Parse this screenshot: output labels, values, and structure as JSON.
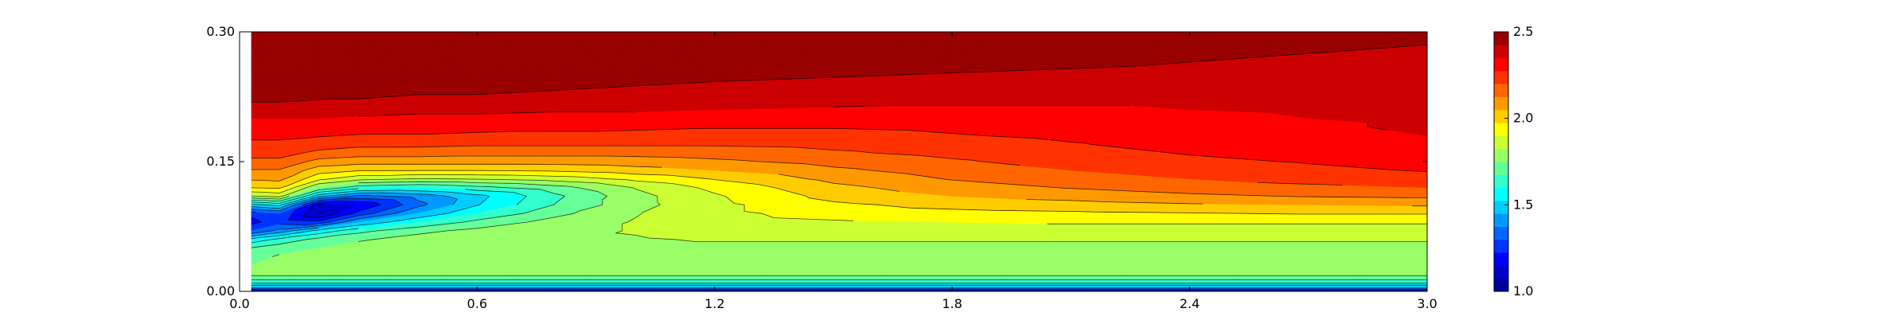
{
  "chart_data": {
    "type": "contourf",
    "title": "",
    "xlabel": "",
    "ylabel": "",
    "xlim": [
      0.0,
      3.0
    ],
    "ylim": [
      0.0,
      0.3
    ],
    "x_ticks": [
      0.0,
      0.6,
      1.2,
      1.8,
      2.4,
      3.0
    ],
    "x_tick_labels": [
      "0.0",
      "0.6",
      "1.2",
      "1.8",
      "2.4",
      "3.0"
    ],
    "y_ticks": [
      0.0,
      0.15,
      0.3
    ],
    "y_tick_labels": [
      "0.00",
      "0.15",
      "0.30"
    ],
    "grid": false,
    "colormap": "jet",
    "colorbar": {
      "min": 1.0,
      "max": 2.5,
      "ticks": [
        1.0,
        1.5,
        2.0,
        2.5
      ],
      "tick_labels": [
        "1.0",
        "1.5",
        "2.0",
        "2.5"
      ],
      "levels": [
        1.0,
        1.075,
        1.15,
        1.225,
        1.3,
        1.375,
        1.45,
        1.525,
        1.6,
        1.675,
        1.75,
        1.825,
        1.9,
        1.975,
        2.05,
        2.125,
        2.2,
        2.275,
        2.35,
        2.425,
        2.5
      ]
    },
    "field": {
      "x": [
        0.03,
        0.1,
        0.2,
        0.3,
        0.45,
        0.6,
        0.8,
        1.0,
        1.2,
        1.5,
        1.8,
        2.1,
        2.4,
        2.7,
        3.0
      ],
      "y": [
        0.0,
        0.005,
        0.01,
        0.02,
        0.03,
        0.04,
        0.05,
        0.06,
        0.07,
        0.08,
        0.09,
        0.1,
        0.11,
        0.12,
        0.13,
        0.14,
        0.15,
        0.16,
        0.17,
        0.18,
        0.19,
        0.2,
        0.21,
        0.22,
        0.23,
        0.24,
        0.25,
        0.26,
        0.27,
        0.28,
        0.29,
        0.3
      ],
      "values": [
        [
          1.15,
          1.45,
          1.62,
          1.78,
          1.75,
          1.72,
          1.68,
          1.55,
          1.3,
          1.2,
          1.25,
          1.5,
          1.82,
          1.98,
          2.06,
          2.12,
          2.18,
          2.23,
          2.26,
          2.29,
          2.32,
          2.35,
          2.39,
          2.43,
          2.45,
          2.47,
          2.48,
          2.49,
          2.5,
          2.5,
          2.5,
          2.5
        ],
        [
          1.15,
          1.45,
          1.62,
          1.78,
          1.78,
          1.76,
          1.72,
          1.62,
          1.4,
          1.27,
          1.3,
          1.55,
          1.85,
          1.99,
          2.07,
          2.12,
          2.18,
          2.23,
          2.26,
          2.29,
          2.32,
          2.35,
          2.39,
          2.43,
          2.45,
          2.47,
          2.48,
          2.49,
          2.5,
          2.5,
          2.5,
          2.5
        ],
        [
          1.15,
          1.45,
          1.62,
          1.78,
          1.78,
          1.77,
          1.75,
          1.7,
          1.55,
          1.25,
          1.07,
          1.12,
          1.47,
          1.75,
          1.92,
          2.01,
          2.1,
          2.18,
          2.24,
          2.28,
          2.32,
          2.35,
          2.39,
          2.42,
          2.45,
          2.47,
          2.48,
          2.49,
          2.5,
          2.5,
          2.5,
          2.5
        ],
        [
          1.15,
          1.45,
          1.62,
          1.78,
          1.79,
          1.79,
          1.78,
          1.74,
          1.65,
          1.45,
          1.25,
          1.15,
          1.35,
          1.63,
          1.85,
          1.98,
          2.08,
          2.16,
          2.22,
          2.27,
          2.31,
          2.34,
          2.38,
          2.42,
          2.44,
          2.46,
          2.48,
          2.49,
          2.5,
          2.5,
          2.5,
          2.5
        ],
        [
          1.15,
          1.45,
          1.62,
          1.78,
          1.79,
          1.8,
          1.79,
          1.78,
          1.73,
          1.6,
          1.45,
          1.35,
          1.4,
          1.6,
          1.82,
          1.98,
          2.08,
          2.16,
          2.22,
          2.27,
          2.3,
          2.33,
          2.37,
          2.41,
          2.43,
          2.45,
          2.47,
          2.48,
          2.5,
          2.5,
          2.5,
          2.5
        ],
        [
          1.15,
          1.45,
          1.62,
          1.78,
          1.79,
          1.8,
          1.8,
          1.79,
          1.77,
          1.7,
          1.6,
          1.52,
          1.5,
          1.65,
          1.83,
          1.98,
          2.08,
          2.15,
          2.21,
          2.26,
          2.3,
          2.33,
          2.37,
          2.41,
          2.43,
          2.45,
          2.47,
          2.48,
          2.49,
          2.5,
          2.5,
          2.5
        ],
        [
          1.15,
          1.45,
          1.62,
          1.78,
          1.79,
          1.8,
          1.81,
          1.81,
          1.8,
          1.78,
          1.73,
          1.68,
          1.66,
          1.72,
          1.86,
          1.99,
          2.08,
          2.15,
          2.21,
          2.26,
          2.29,
          2.32,
          2.36,
          2.4,
          2.42,
          2.44,
          2.46,
          2.48,
          2.49,
          2.49,
          2.5,
          2.5
        ],
        [
          1.15,
          1.45,
          1.62,
          1.78,
          1.79,
          1.8,
          1.81,
          1.82,
          1.83,
          1.83,
          1.82,
          1.8,
          1.8,
          1.83,
          1.92,
          2.02,
          2.09,
          2.15,
          2.21,
          2.25,
          2.29,
          2.32,
          2.36,
          2.39,
          2.41,
          2.43,
          2.45,
          2.47,
          2.48,
          2.49,
          2.49,
          2.49
        ],
        [
          1.15,
          1.45,
          1.62,
          1.78,
          1.79,
          1.8,
          1.81,
          1.83,
          1.85,
          1.87,
          1.88,
          1.88,
          1.89,
          1.92,
          1.98,
          2.05,
          2.11,
          2.16,
          2.21,
          2.25,
          2.28,
          2.31,
          2.35,
          2.38,
          2.4,
          2.42,
          2.44,
          2.46,
          2.47,
          2.48,
          2.49,
          2.49
        ],
        [
          1.15,
          1.45,
          1.62,
          1.78,
          1.79,
          1.8,
          1.81,
          1.83,
          1.86,
          1.89,
          1.93,
          1.96,
          2.0,
          2.03,
          2.07,
          2.11,
          2.15,
          2.19,
          2.22,
          2.25,
          2.28,
          2.31,
          2.34,
          2.37,
          2.39,
          2.41,
          2.43,
          2.45,
          2.46,
          2.47,
          2.48,
          2.48
        ],
        [
          1.15,
          1.45,
          1.62,
          1.78,
          1.79,
          1.8,
          1.81,
          1.83,
          1.86,
          1.9,
          1.95,
          2.0,
          2.05,
          2.09,
          2.13,
          2.16,
          2.19,
          2.22,
          2.24,
          2.27,
          2.29,
          2.31,
          2.34,
          2.36,
          2.38,
          2.4,
          2.42,
          2.44,
          2.45,
          2.46,
          2.47,
          2.48
        ],
        [
          1.15,
          1.45,
          1.62,
          1.78,
          1.79,
          1.8,
          1.81,
          1.83,
          1.86,
          1.91,
          1.96,
          2.02,
          2.08,
          2.13,
          2.17,
          2.2,
          2.23,
          2.25,
          2.27,
          2.29,
          2.31,
          2.32,
          2.34,
          2.36,
          2.38,
          2.39,
          2.41,
          2.43,
          2.44,
          2.45,
          2.46,
          2.47
        ],
        [
          1.15,
          1.45,
          1.62,
          1.78,
          1.79,
          1.8,
          1.81,
          1.83,
          1.86,
          1.91,
          1.97,
          2.04,
          2.11,
          2.16,
          2.2,
          2.23,
          2.26,
          2.28,
          2.3,
          2.31,
          2.32,
          2.33,
          2.35,
          2.36,
          2.38,
          2.39,
          2.41,
          2.42,
          2.43,
          2.44,
          2.45,
          2.46
        ],
        [
          1.15,
          1.45,
          1.62,
          1.78,
          1.79,
          1.8,
          1.81,
          1.83,
          1.86,
          1.91,
          1.98,
          2.05,
          2.13,
          2.18,
          2.23,
          2.26,
          2.28,
          2.3,
          2.32,
          2.33,
          2.34,
          2.35,
          2.36,
          2.37,
          2.38,
          2.39,
          2.4,
          2.41,
          2.42,
          2.43,
          2.44,
          2.45
        ],
        [
          1.15,
          1.45,
          1.62,
          1.78,
          1.79,
          1.8,
          1.81,
          1.83,
          1.86,
          1.91,
          1.98,
          2.06,
          2.14,
          2.2,
          2.25,
          2.28,
          2.3,
          2.32,
          2.34,
          2.35,
          2.36,
          2.36,
          2.37,
          2.38,
          2.38,
          2.39,
          2.4,
          2.41,
          2.42,
          2.42,
          2.43,
          2.44
        ]
      ]
    }
  }
}
